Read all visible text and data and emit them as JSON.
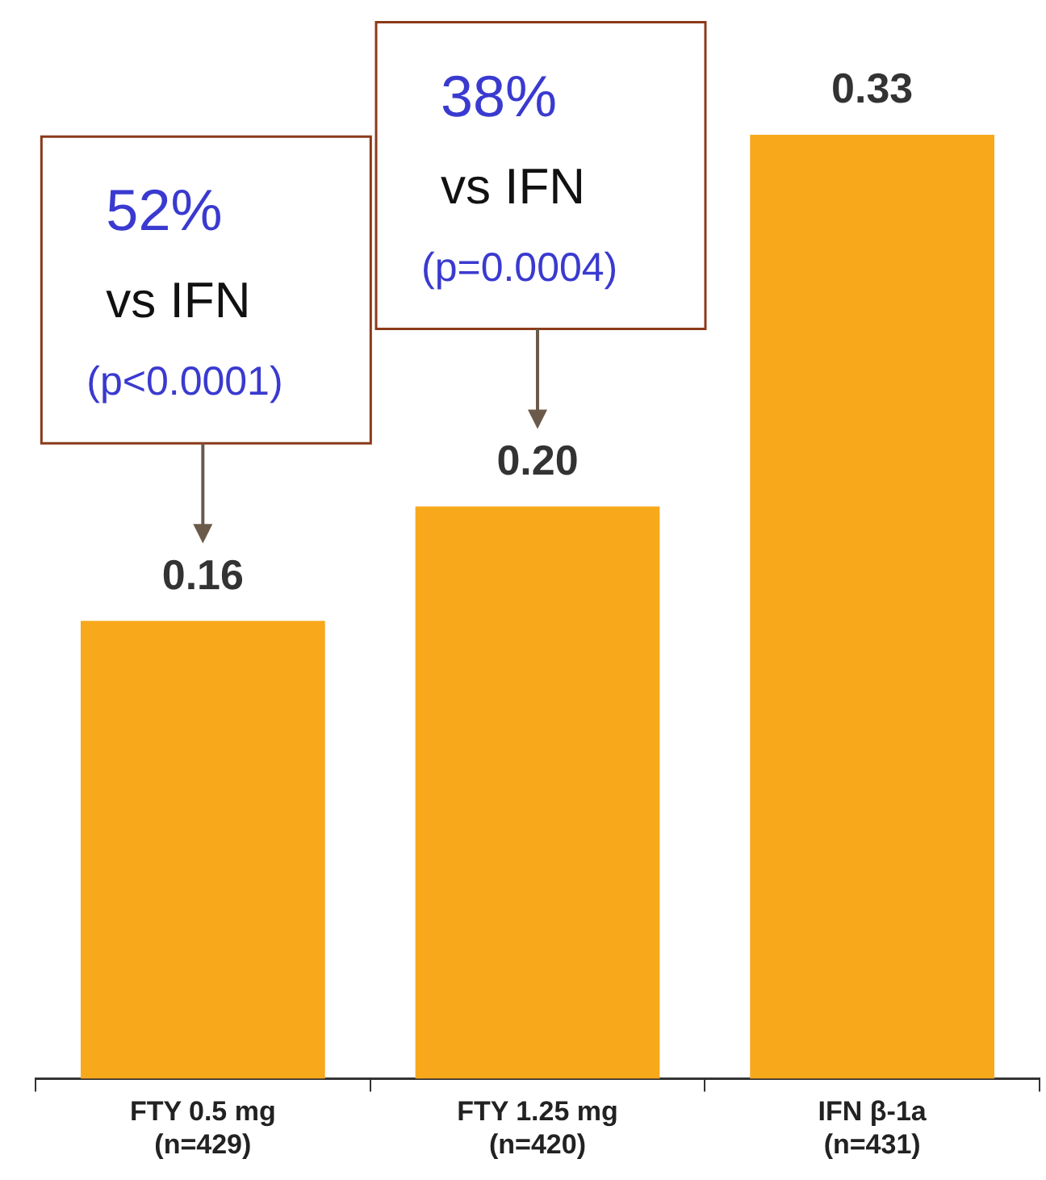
{
  "chart_data": {
    "type": "bar",
    "categories": [
      "FTY 0.5 mg\n(n=429)",
      "FTY 1.25 mg\n(n=420)",
      "IFN β-1a\n(n=431)"
    ],
    "values": [
      0.16,
      0.2,
      0.33
    ],
    "value_labels": [
      "0.16",
      "0.20",
      "0.33"
    ],
    "color": "#f7a81b",
    "tick_labels": "x",
    "grid": false,
    "legend": false,
    "annotations": [
      "52%\nvs IFN\n(p<0.0001)",
      "38%\nvs IFN\n(p=0.0004)"
    ]
  }
}
